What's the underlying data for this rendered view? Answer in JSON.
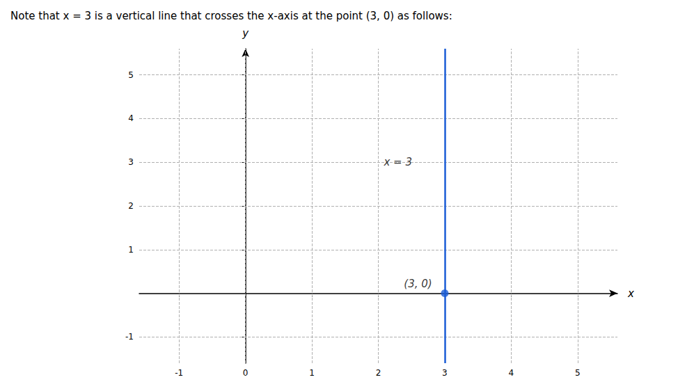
{
  "chart_data": {
    "type": "scatter",
    "title": "Note that x = 3 is a vertical line that crosses the x-axis at the point (3, 0) as follows:",
    "x_label": "x",
    "y_label": "y",
    "xlim": [
      -1.6,
      5.6
    ],
    "ylim": [
      -1.6,
      5.6
    ],
    "xticks": [
      -1,
      0,
      1,
      2,
      3,
      4,
      5
    ],
    "yticks": [
      -1,
      1,
      2,
      3,
      4,
      5
    ],
    "grid": true,
    "vertical_line": {
      "x": 3,
      "color": "#1a5cd6"
    },
    "points": {
      "x": [
        3
      ],
      "y": [
        0
      ],
      "color": "#1a5cd6"
    },
    "annotations": [
      {
        "text": "x = 3",
        "x": 2.55,
        "y": 3.0
      },
      {
        "text": "(3, 0)",
        "x": 2.85,
        "y": 0.22
      }
    ]
  }
}
